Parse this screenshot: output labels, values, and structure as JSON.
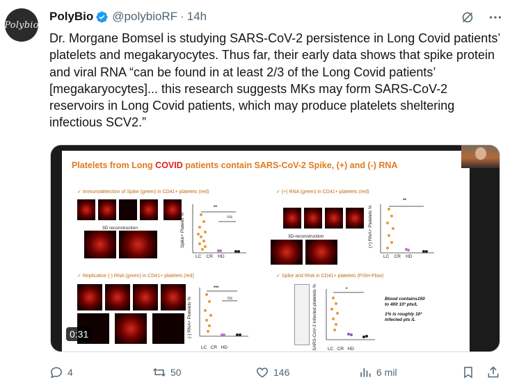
{
  "author": {
    "avatar_text": "Polybio",
    "name": "PolyBio",
    "handle": "@polybioRF",
    "separator": "·",
    "time": "14h"
  },
  "header_icons": [
    "grok-icon",
    "more-icon"
  ],
  "tweet_text": "Dr. Morgane Bomsel is studying SARS-CoV-2 persistence in Long Covid patients’ platelets and megakaryocytes. Thus far, their early data shows that spike protein and viral RNA “can be found in at least 2/3 of the Long Covid patients’ [megakaryocytes]... this research suggests MKs may form SARS-CoV-2 reservoirs in Long Covid patients, which may produce platelets sheltering infectious SCV2.”",
  "media": {
    "slide_title_part1": "Platelets",
    "slide_title_part2": " from Long ",
    "slide_title_part3": "COVID",
    "slide_title_part4": " patients contain SARS-CoV-2 Spike, (+) and (-) RNA",
    "panels": [
      {
        "title": "Immunodetection of Spike (green) in CD41+ platelets (red)",
        "ylabel": "Spike+ Platelet %",
        "sig": "**",
        "ns": "ns",
        "groups": [
          "LC",
          "CR",
          "HD"
        ],
        "sub": "3D reconstruction"
      },
      {
        "title": "(+) RNA (green) in CD41+ platelets (red)",
        "ylabel": "(+) RNA+ Platelets %",
        "sig": "**",
        "groups": [
          "LC",
          "CR",
          "HD"
        ],
        "sub": "3D-reconstruction"
      },
      {
        "title": "Replicative (-) RNA (green) in CD41+ platelets (red)",
        "ylabel": "(-) RNA+ Platelets %",
        "sig": "***",
        "ns": "ns",
        "groups": [
          "LC",
          "CR",
          "HD"
        ]
      },
      {
        "title": "Spike and RNA in CD41+ platelets (FISH-Flow)",
        "ylabel": "SARS-CoV-2 infected platelets %",
        "sig": "*",
        "groups": [
          "LC",
          "CR",
          "HD"
        ],
        "note1": "Blood contains150",
        "note2": "to 400 10³ pts/L",
        "note3": "1% is roughly 10³",
        "note4": "infected pts /L"
      }
    ],
    "duration": "0:31"
  },
  "actions": {
    "replies": "4",
    "reposts": "50",
    "likes": "146",
    "views": "6 mil"
  },
  "colors": {
    "accent": "#1d9bf0",
    "muted": "#536471",
    "orange": "#e07a1f"
  }
}
